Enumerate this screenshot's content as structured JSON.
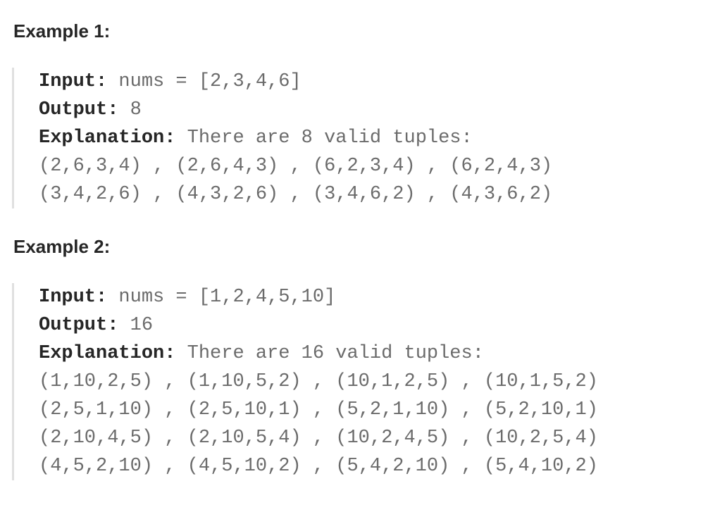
{
  "examples": [
    {
      "heading": "Example 1:",
      "input_label": "Input:",
      "input_value": "nums = [2,3,4,6]",
      "output_label": "Output:",
      "output_value": "8",
      "explanation_label": "Explanation:",
      "explanation_value": "There are 8 valid tuples:",
      "tuple_lines": [
        "(2,6,3,4) , (2,6,4,3) , (6,2,3,4) , (6,2,4,3)",
        "(3,4,2,6) , (4,3,2,6) , (3,4,6,2) , (4,3,6,2)"
      ]
    },
    {
      "heading": "Example 2:",
      "input_label": "Input:",
      "input_value": "nums = [1,2,4,5,10]",
      "output_label": "Output:",
      "output_value": "16",
      "explanation_label": "Explanation:",
      "explanation_value": "There are 16 valid tuples:",
      "tuple_lines": [
        "(1,10,2,5) , (1,10,5,2) , (10,1,2,5) , (10,1,5,2)",
        "(2,5,1,10) , (2,5,10,1) , (5,2,1,10) , (5,2,10,1)",
        "(2,10,4,5) , (2,10,5,4) , (10,2,4,5) , (10,2,5,4)",
        "(4,5,2,10) , (4,5,10,2) , (5,4,2,10) , (5,4,10,2)"
      ]
    }
  ]
}
